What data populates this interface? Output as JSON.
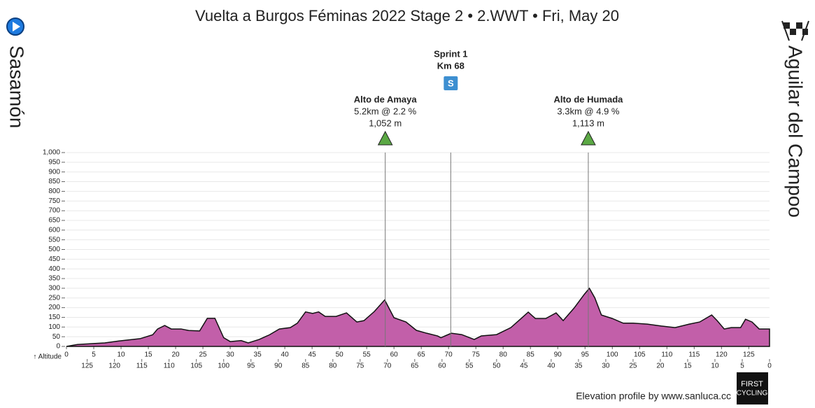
{
  "chart_data": {
    "type": "area",
    "title": "Vuelta a Burgos Féminas 2022 Stage 2 • 2.WWT • Fri, May 20",
    "start": "Sasamón",
    "finish": "Aguilar del Campoo",
    "y_axis_label": "↑ Altitude",
    "color": "#c25fa9",
    "x": [
      0,
      2,
      7,
      9.6,
      13.5,
      15.8,
      16.7,
      18,
      19.2,
      21,
      22.4,
      24.4,
      25.8,
      27.2,
      28.8,
      30,
      32,
      33.3,
      35.3,
      37.2,
      39,
      41,
      42.3,
      43.8,
      45.1,
      46.2,
      47.4,
      49.4,
      51.3,
      53.2,
      54.5,
      56.4,
      58.3,
      60,
      62.2,
      64.1,
      66,
      68,
      68.6,
      70.5,
      72.4,
      74.7,
      76,
      78.8,
      81.4,
      83.3,
      84.6,
      85.9,
      87.8,
      89.7,
      91,
      93,
      94.9,
      95.8,
      96.8,
      98,
      100,
      102,
      103.8,
      106.4,
      109,
      111.5,
      114.1,
      116,
      118.2,
      119.2,
      120.5,
      121.8,
      123.5,
      124.4,
      125.6,
      126.9,
      128.8
    ],
    "values": [
      0,
      10,
      18,
      28,
      40,
      60,
      90,
      108,
      90,
      90,
      82,
      80,
      145,
      145,
      45,
      25,
      30,
      18,
      36,
      60,
      90,
      97,
      120,
      178,
      170,
      178,
      155,
      155,
      173,
      126,
      133,
      180,
      240,
      148,
      126,
      83,
      68,
      54,
      45,
      68,
      61,
      36,
      54,
      61,
      97,
      144,
      177,
      144,
      144,
      173,
      133,
      198,
      270,
      300,
      250,
      162,
      144,
      120,
      120,
      115,
      105,
      97,
      115,
      126,
      162,
      133,
      90,
      97,
      97,
      140,
      126,
      90,
      90
    ],
    "xlim": [
      0,
      128.8
    ],
    "xticks": [
      0,
      5,
      10,
      15,
      20,
      25,
      30,
      35,
      40,
      45,
      50,
      55,
      60,
      65,
      70,
      75,
      80,
      85,
      90,
      95,
      100,
      105,
      110,
      115,
      120,
      125
    ],
    "x2lim": [
      128.8,
      0
    ],
    "x2ticks": [
      125,
      120,
      115,
      110,
      105,
      100,
      95,
      90,
      85,
      80,
      75,
      70,
      65,
      60,
      55,
      50,
      45,
      40,
      35,
      30,
      25,
      20,
      15,
      10,
      5,
      0
    ],
    "ylim": [
      0,
      1000
    ],
    "yticks": [
      0,
      50,
      100,
      150,
      200,
      250,
      300,
      350,
      400,
      450,
      500,
      550,
      600,
      650,
      700,
      750,
      800,
      850,
      900,
      950,
      {
        "value": 1000,
        "label": "1,000"
      }
    ],
    "grid": true,
    "climbs": [
      {
        "name": "Alto de Amaya",
        "detail": "5.2km @ 2.2 %",
        "elevation": "1,052 m",
        "x": 58.4
      },
      {
        "name": "Alto de Humada",
        "detail": "3.3km @ 4.9 %",
        "elevation": "1,113 m",
        "x": 95.6
      }
    ],
    "sprints": [
      {
        "name": "Sprint 1",
        "label": "Km 68",
        "icon": "S",
        "x": 70.4
      }
    ],
    "credit": "Elevation profile by www.sanluca.cc",
    "logo": [
      "FIRST",
      "CYCLING"
    ]
  }
}
